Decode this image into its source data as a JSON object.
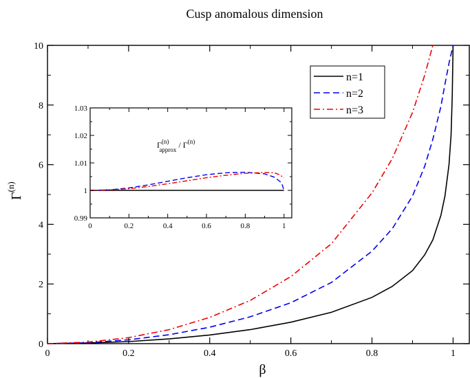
{
  "chart_data": [
    {
      "type": "line",
      "title": "Cusp anomalous dimension",
      "xlabel": "β",
      "ylabel": "Γ",
      "ylabel_sup": "(n)",
      "xlim": [
        0,
        1.04
      ],
      "ylim": [
        0,
        10
      ],
      "grid": false,
      "legend_position": "top-right",
      "x_ticks": [
        0,
        0.2,
        0.4,
        0.6,
        0.8,
        1
      ],
      "x_tick_labels": [
        "0",
        "0.2",
        "0.4",
        "0.6",
        "0.8",
        "1"
      ],
      "y_ticks": [
        0,
        2,
        4,
        6,
        8,
        10
      ],
      "y_tick_labels": [
        "0",
        "2",
        "4",
        "6",
        "8",
        "10"
      ],
      "series": [
        {
          "name": "n=1",
          "color": "#000000",
          "dash": "solid",
          "x": [
            0,
            0.1,
            0.2,
            0.3,
            0.4,
            0.5,
            0.6,
            0.7,
            0.8,
            0.85,
            0.9,
            0.93,
            0.95,
            0.97,
            0.98,
            0.99,
            0.995,
            0.998,
            1.0
          ],
          "y": [
            0,
            0.02,
            0.07,
            0.16,
            0.29,
            0.47,
            0.72,
            1.05,
            1.55,
            1.92,
            2.45,
            2.98,
            3.48,
            4.3,
            4.95,
            6.0,
            7.0,
            8.3,
            10
          ]
        },
        {
          "name": "n=2",
          "color": "#0000ee",
          "dash": "dashed",
          "x": [
            0,
            0.1,
            0.2,
            0.3,
            0.4,
            0.5,
            0.6,
            0.7,
            0.8,
            0.85,
            0.9,
            0.93,
            0.95,
            0.97,
            0.98,
            0.99,
            1.0
          ],
          "y": [
            0,
            0.03,
            0.13,
            0.3,
            0.55,
            0.9,
            1.37,
            2.05,
            3.1,
            3.85,
            4.95,
            5.95,
            6.85,
            7.95,
            8.7,
            9.4,
            10
          ]
        },
        {
          "name": "n=3",
          "color": "#ee0000",
          "dash": "dashdot",
          "x": [
            0,
            0.1,
            0.2,
            0.3,
            0.4,
            0.5,
            0.6,
            0.7,
            0.8,
            0.85,
            0.9,
            0.93,
            0.95
          ],
          "y": [
            0,
            0.05,
            0.2,
            0.47,
            0.88,
            1.45,
            2.25,
            3.35,
            5.05,
            6.2,
            7.75,
            9.0,
            10
          ]
        }
      ]
    },
    {
      "type": "line",
      "title": "",
      "annotation": "Γ(n)approx / Γ(n)",
      "annotation_parts": {
        "gamma1": "Γ",
        "sup1": "(n)",
        "sub1": "approx",
        "slash": " / ",
        "gamma2": "Γ",
        "sup2": "(n)"
      },
      "xlim": [
        0,
        1.04
      ],
      "ylim": [
        0.99,
        1.03
      ],
      "grid": false,
      "x_ticks": [
        0,
        0.2,
        0.4,
        0.6,
        0.8,
        1
      ],
      "x_tick_labels": [
        "0",
        "0.2",
        "0.4",
        "0.6",
        "0.8",
        "1"
      ],
      "y_ticks": [
        0.99,
        1,
        1.01,
        1.02,
        1.03
      ],
      "y_tick_labels": [
        "0.99",
        "1",
        "1.01",
        "1.02",
        "1.03"
      ],
      "series": [
        {
          "color": "#000000",
          "dash": "solid",
          "x": [
            0,
            1.0
          ],
          "y": [
            1.0,
            1.0
          ]
        },
        {
          "color": "#0000ee",
          "dash": "dashed",
          "x": [
            0,
            0.1,
            0.2,
            0.3,
            0.4,
            0.5,
            0.6,
            0.7,
            0.8,
            0.9,
            0.95,
            0.98,
            0.99,
            1.0
          ],
          "y": [
            1.0,
            1.0002,
            1.0009,
            1.002,
            1.0033,
            1.0046,
            1.0057,
            1.0064,
            1.0066,
            1.006,
            1.0048,
            1.0032,
            1.0022,
            1.0
          ]
        },
        {
          "color": "#ee0000",
          "dash": "dashdot",
          "x": [
            0,
            0.1,
            0.2,
            0.3,
            0.4,
            0.5,
            0.6,
            0.7,
            0.8,
            0.9,
            0.95,
            0.98,
            1.0
          ],
          "y": [
            1.0,
            1.0002,
            1.0006,
            1.0014,
            1.0024,
            1.0035,
            1.0046,
            1.0055,
            1.0062,
            1.0065,
            1.0064,
            1.0056,
            1.0045
          ]
        }
      ]
    }
  ]
}
